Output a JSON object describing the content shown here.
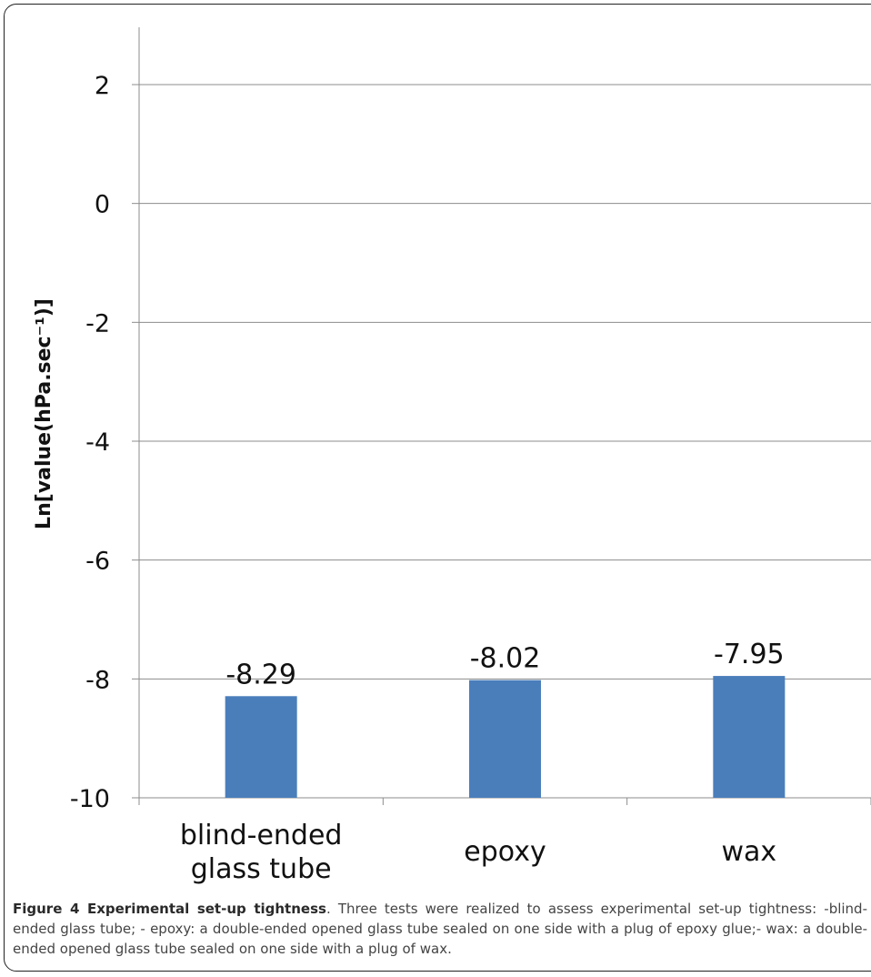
{
  "chart_data": {
    "type": "bar",
    "categories": [
      [
        "blind-ended",
        "glass tube"
      ],
      [
        "epoxy"
      ],
      [
        "wax"
      ]
    ],
    "values": [
      -8.29,
      -8.02,
      -7.95
    ],
    "data_labels": [
      "-8.29",
      "-8.02",
      "-7.95"
    ],
    "ylabel": "Ln[value(hPa.sec⁻¹)]",
    "ylim": [
      -10,
      3
    ],
    "yticks": [
      2,
      0,
      -2,
      -4,
      -6,
      -8,
      -10
    ],
    "ytick_labels": [
      "2",
      "0",
      "-2",
      "-4",
      "-6",
      "-8",
      "-10"
    ],
    "grid": true,
    "bar_color": "#4a7ebb",
    "grid_color": "#8c8c8c"
  },
  "caption": {
    "label": "Figure 4 Experimental set-up tightness",
    "text": ". Three tests were realized to assess experimental set-up tightness: -blind-ended glass tube; - epoxy: a double-ended opened glass tube sealed on one side with a plug of epoxy glue;- wax: a double-ended opened glass tube sealed on one side with a plug of wax."
  }
}
